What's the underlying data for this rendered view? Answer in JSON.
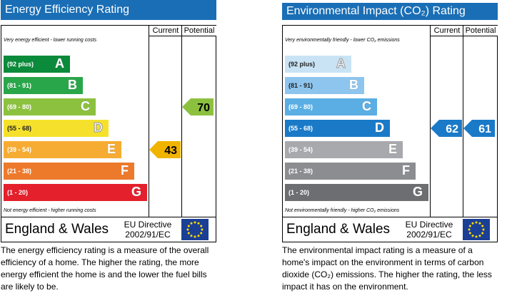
{
  "energy": {
    "title": "Energy Efficiency Rating",
    "col_current": "Current",
    "col_potential": "Potential",
    "top_note": "Very energy efficient - lower running costs",
    "bottom_note": "Not energy efficient - higher running costs",
    "bands": [
      {
        "range": "(92 plus)",
        "letter": "A",
        "color": "#0a8a3a"
      },
      {
        "range": "(81 - 91)",
        "letter": "B",
        "color": "#2aa64a"
      },
      {
        "range": "(69 - 80)",
        "letter": "C",
        "color": "#8cc13f"
      },
      {
        "range": "(55 - 68)",
        "letter": "D",
        "color": "#f5e12c"
      },
      {
        "range": "(39 - 54)",
        "letter": "E",
        "color": "#f6ac33"
      },
      {
        "range": "(21 - 38)",
        "letter": "F",
        "color": "#ed7a2b"
      },
      {
        "range": "(1 - 20)",
        "letter": "G",
        "color": "#e4202c"
      }
    ],
    "current": {
      "value": "43",
      "color": "#f0b400"
    },
    "potential": {
      "value": "70",
      "color": "#8cc13f"
    },
    "region": "England & Wales",
    "directive_line1": "EU Directive",
    "directive_line2": "2002/91/EC",
    "description": "The energy efficiency rating is a measure of the overall efficiency of a home. The higher the rating, the more energy efficient the home is and the lower the fuel bills are likely to be."
  },
  "environment": {
    "title": "Environmental Impact (CO₂) Rating",
    "col_current": "Current",
    "col_potential": "Potential",
    "top_note": "Very environmentally friendly - lower CO₂ emissions",
    "bottom_note": "Not environmentally friendly - higher CO₂ emissions",
    "bands": [
      {
        "range": "(92 plus)",
        "letter": "A",
        "color": "#c9e3f5"
      },
      {
        "range": "(81 - 91)",
        "letter": "B",
        "color": "#8ec5ee"
      },
      {
        "range": "(69 - 80)",
        "letter": "C",
        "color": "#5aaee4"
      },
      {
        "range": "(55 - 68)",
        "letter": "D",
        "color": "#1a7ac8"
      },
      {
        "range": "(39 - 54)",
        "letter": "E",
        "color": "#a7a9ac"
      },
      {
        "range": "(21 - 38)",
        "letter": "F",
        "color": "#8b8d90"
      },
      {
        "range": "(1 - 20)",
        "letter": "G",
        "color": "#6d6e71"
      }
    ],
    "current": {
      "value": "62",
      "color": "#1a7ac8"
    },
    "potential": {
      "value": "61",
      "color": "#1a7ac8"
    },
    "region": "England & Wales",
    "directive_line1": "EU Directive",
    "directive_line2": "2002/91/EC",
    "description": "The environmental impact rating is a measure of a home's impact on the environment in terms of carbon dioxide (CO₂) emissions. The higher the rating, the less impact it has on the environment."
  }
}
